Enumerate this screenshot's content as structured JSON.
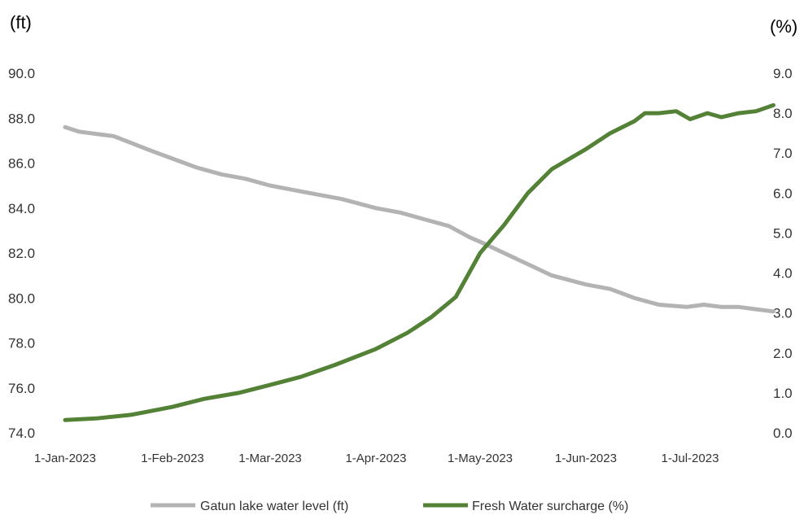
{
  "chart_data": {
    "type": "line",
    "left_axis": {
      "unit_label": "(ft)",
      "ylim": [
        74.0,
        90.0
      ],
      "ticks": [
        "74.0",
        "76.0",
        "78.0",
        "80.0",
        "82.0",
        "84.0",
        "86.0",
        "88.0",
        "90.0"
      ]
    },
    "right_axis": {
      "unit_label": "(%)",
      "ylim": [
        0.0,
        9.0
      ],
      "ticks": [
        "0.0",
        "1.0",
        "2.0",
        "3.0",
        "4.0",
        "5.0",
        "6.0",
        "7.0",
        "8.0",
        "9.0"
      ]
    },
    "x_axis": {
      "start": "2023-01-01",
      "end": "2023-07-25",
      "tick_labels": [
        "1-Jan-2023",
        "1-Feb-2023",
        "1-Mar-2023",
        "1-Apr-2023",
        "1-May-2023",
        "1-Jun-2023",
        "1-Jul-2023"
      ],
      "tick_dates": [
        "2023-01-01",
        "2023-02-01",
        "2023-03-01",
        "2023-04-01",
        "2023-05-01",
        "2023-06-01",
        "2023-07-01"
      ]
    },
    "grid": false,
    "legend_position": "bottom",
    "series": [
      {
        "name": "Gatun lake water level (ft)",
        "axis": "left",
        "color": "#b3b3b3",
        "points": [
          [
            "2023-01-01",
            87.6
          ],
          [
            "2023-01-05",
            87.4
          ],
          [
            "2023-01-10",
            87.3
          ],
          [
            "2023-01-15",
            87.2
          ],
          [
            "2023-01-20",
            86.9
          ],
          [
            "2023-01-25",
            86.6
          ],
          [
            "2023-02-01",
            86.2
          ],
          [
            "2023-02-08",
            85.8
          ],
          [
            "2023-02-15",
            85.5
          ],
          [
            "2023-02-22",
            85.3
          ],
          [
            "2023-03-01",
            85.0
          ],
          [
            "2023-03-08",
            84.8
          ],
          [
            "2023-03-15",
            84.6
          ],
          [
            "2023-03-22",
            84.4
          ],
          [
            "2023-04-01",
            84.0
          ],
          [
            "2023-04-08",
            83.8
          ],
          [
            "2023-04-15",
            83.5
          ],
          [
            "2023-04-22",
            83.2
          ],
          [
            "2023-04-28",
            82.7
          ],
          [
            "2023-05-01",
            82.5
          ],
          [
            "2023-05-08",
            82.0
          ],
          [
            "2023-05-15",
            81.5
          ],
          [
            "2023-05-22",
            81.0
          ],
          [
            "2023-06-01",
            80.6
          ],
          [
            "2023-06-08",
            80.4
          ],
          [
            "2023-06-15",
            80.0
          ],
          [
            "2023-06-22",
            79.7
          ],
          [
            "2023-06-30",
            79.6
          ],
          [
            "2023-07-05",
            79.7
          ],
          [
            "2023-07-10",
            79.6
          ],
          [
            "2023-07-15",
            79.6
          ],
          [
            "2023-07-20",
            79.5
          ],
          [
            "2023-07-25",
            79.4
          ]
        ]
      },
      {
        "name": "Fresh Water surcharge (%)",
        "axis": "right",
        "color": "#538135",
        "points": [
          [
            "2023-01-01",
            0.32
          ],
          [
            "2023-01-10",
            0.36
          ],
          [
            "2023-01-20",
            0.45
          ],
          [
            "2023-02-01",
            0.65
          ],
          [
            "2023-02-10",
            0.85
          ],
          [
            "2023-02-20",
            1.0
          ],
          [
            "2023-03-01",
            1.2
          ],
          [
            "2023-03-10",
            1.4
          ],
          [
            "2023-03-20",
            1.7
          ],
          [
            "2023-04-01",
            2.1
          ],
          [
            "2023-04-10",
            2.5
          ],
          [
            "2023-04-17",
            2.9
          ],
          [
            "2023-04-24",
            3.4
          ],
          [
            "2023-05-01",
            4.5
          ],
          [
            "2023-05-08",
            5.2
          ],
          [
            "2023-05-15",
            6.0
          ],
          [
            "2023-05-22",
            6.6
          ],
          [
            "2023-06-01",
            7.1
          ],
          [
            "2023-06-08",
            7.5
          ],
          [
            "2023-06-15",
            7.8
          ],
          [
            "2023-06-18",
            8.0
          ],
          [
            "2023-06-22",
            8.0
          ],
          [
            "2023-06-27",
            8.05
          ],
          [
            "2023-07-01",
            7.85
          ],
          [
            "2023-07-06",
            8.0
          ],
          [
            "2023-07-10",
            7.9
          ],
          [
            "2023-07-15",
            8.0
          ],
          [
            "2023-07-20",
            8.05
          ],
          [
            "2023-07-25",
            8.2
          ]
        ]
      }
    ]
  }
}
